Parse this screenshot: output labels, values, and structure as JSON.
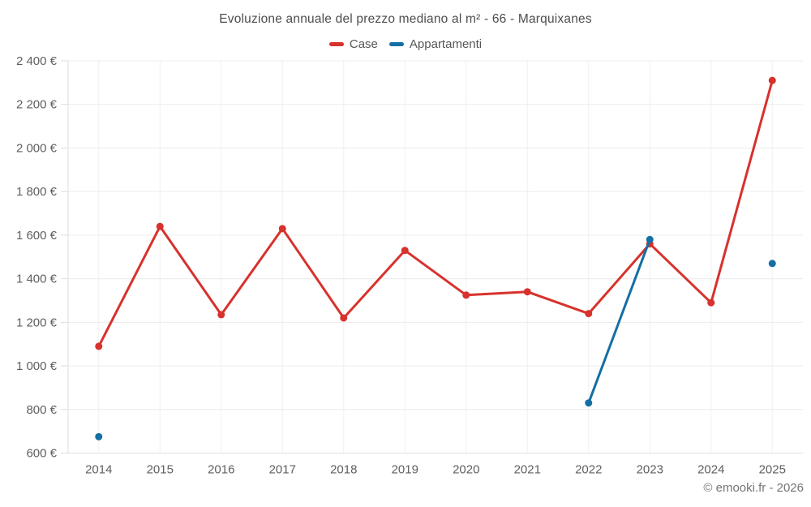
{
  "header": {
    "title": "Evoluzione annuale del prezzo mediano al m² - 66 - Marquixanes"
  },
  "legend": {
    "items": [
      {
        "label": "Case",
        "color": "#d7322d"
      },
      {
        "label": "Appartamenti",
        "color": "#146fa5"
      }
    ]
  },
  "footer": {
    "copyright": "© emooki.fr - 2026"
  },
  "chart_data": {
    "type": "line",
    "title": "Evoluzione annuale del prezzo mediano al m² - 66 - Marquixanes",
    "xlabel": "",
    "ylabel": "",
    "categories": [
      "2014",
      "2015",
      "2016",
      "2017",
      "2018",
      "2019",
      "2020",
      "2021",
      "2022",
      "2023",
      "2024",
      "2025"
    ],
    "series": [
      {
        "name": "Case",
        "color": "#d7322d",
        "values": [
          1090,
          1640,
          1235,
          1630,
          1220,
          1530,
          1325,
          1340,
          1240,
          1560,
          1290,
          2310
        ]
      },
      {
        "name": "Appartamenti",
        "color": "#146fa5",
        "values": [
          675,
          null,
          null,
          null,
          null,
          null,
          null,
          null,
          830,
          1580,
          null,
          1470
        ]
      }
    ],
    "ylim": [
      600,
      2400
    ],
    "y_ticks": [
      {
        "value": 600,
        "label": "600 €"
      },
      {
        "value": 800,
        "label": "800 €"
      },
      {
        "value": 1000,
        "label": "1 000 €"
      },
      {
        "value": 1200,
        "label": "1 200 €"
      },
      {
        "value": 1400,
        "label": "1 400 €"
      },
      {
        "value": 1600,
        "label": "1 600 €"
      },
      {
        "value": 1800,
        "label": "1 800 €"
      },
      {
        "value": 2000,
        "label": "2 000 €"
      },
      {
        "value": 2200,
        "label": "2 200 €"
      },
      {
        "value": 2400,
        "label": "2 400 €"
      }
    ],
    "grid": true,
    "legend_position": "top",
    "watermark": "© emooki.fr - 2026"
  }
}
